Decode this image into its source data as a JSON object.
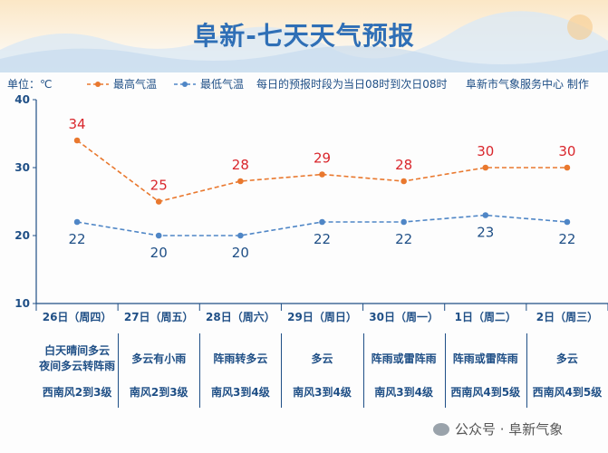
{
  "title": "阜新-七天天气预报",
  "unit_label": "单位：℃",
  "note": "每日的预报时段为当日08时到次日08时",
  "org": "阜新市气象服务中心 制作",
  "footer": "公众号 · 阜新气象",
  "colors": {
    "high": "#e9782e",
    "low": "#4f86c6",
    "axis": "#1f4f86",
    "title": "#2f6fb6",
    "high_label": "#d9262c",
    "low_label": "#1f4f86"
  },
  "chart_data": {
    "type": "line",
    "categories": [
      "26日（周四）",
      "27日（周五）",
      "28日（周六）",
      "29日（周日）",
      "30日（周一）",
      "1日（周二）",
      "2日（周三）"
    ],
    "series": [
      {
        "name": "最高气温",
        "values": [
          34,
          25,
          28,
          29,
          28,
          30,
          30
        ]
      },
      {
        "name": "最低气温",
        "values": [
          22,
          20,
          20,
          22,
          22,
          23,
          22
        ]
      }
    ],
    "ylim": [
      10,
      40
    ],
    "yticks": [
      10,
      20,
      30,
      40
    ],
    "legend_position": "top-left",
    "grid": false
  },
  "days": [
    {
      "weather": [
        "白天晴间多云",
        "夜间多云转阵雨"
      ],
      "wind": "西南风2到3级"
    },
    {
      "weather": [
        "多云有小雨"
      ],
      "wind": "南风2到3级"
    },
    {
      "weather": [
        "阵雨转多云"
      ],
      "wind": "南风3到4级"
    },
    {
      "weather": [
        "多云"
      ],
      "wind": "南风3到4级"
    },
    {
      "weather": [
        "阵雨或雷阵雨"
      ],
      "wind": "南风3到4级"
    },
    {
      "weather": [
        "阵雨或雷阵雨"
      ],
      "wind": "西南风4到5级"
    },
    {
      "weather": [
        "多云"
      ],
      "wind": "西南风4到5级"
    }
  ]
}
